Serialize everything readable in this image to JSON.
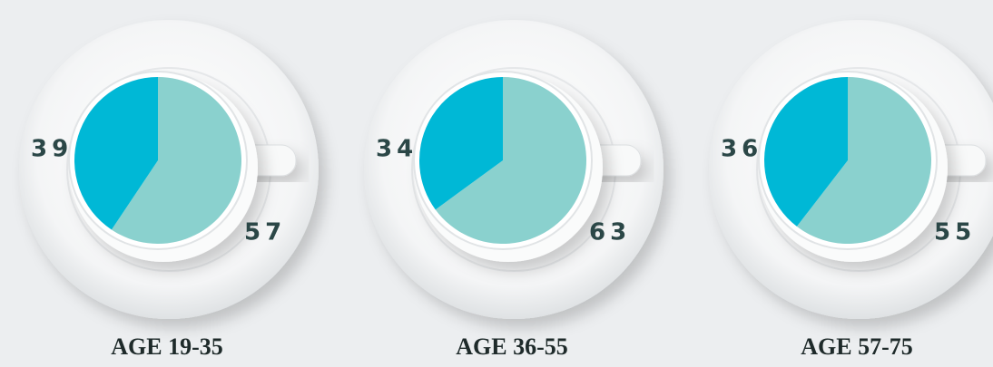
{
  "chart_data": [
    {
      "type": "pie",
      "title": "AGE 19-35",
      "values": [
        39,
        57
      ],
      "colors": [
        "#00b8d6",
        "#8ad1ce"
      ]
    },
    {
      "type": "pie",
      "title": "AGE 36-55",
      "values": [
        34,
        63
      ],
      "colors": [
        "#00b8d6",
        "#8ad1ce"
      ]
    },
    {
      "type": "pie",
      "title": "AGE 57-75",
      "values": [
        36,
        55
      ],
      "colors": [
        "#00b8d6",
        "#8ad1ce"
      ]
    }
  ]
}
